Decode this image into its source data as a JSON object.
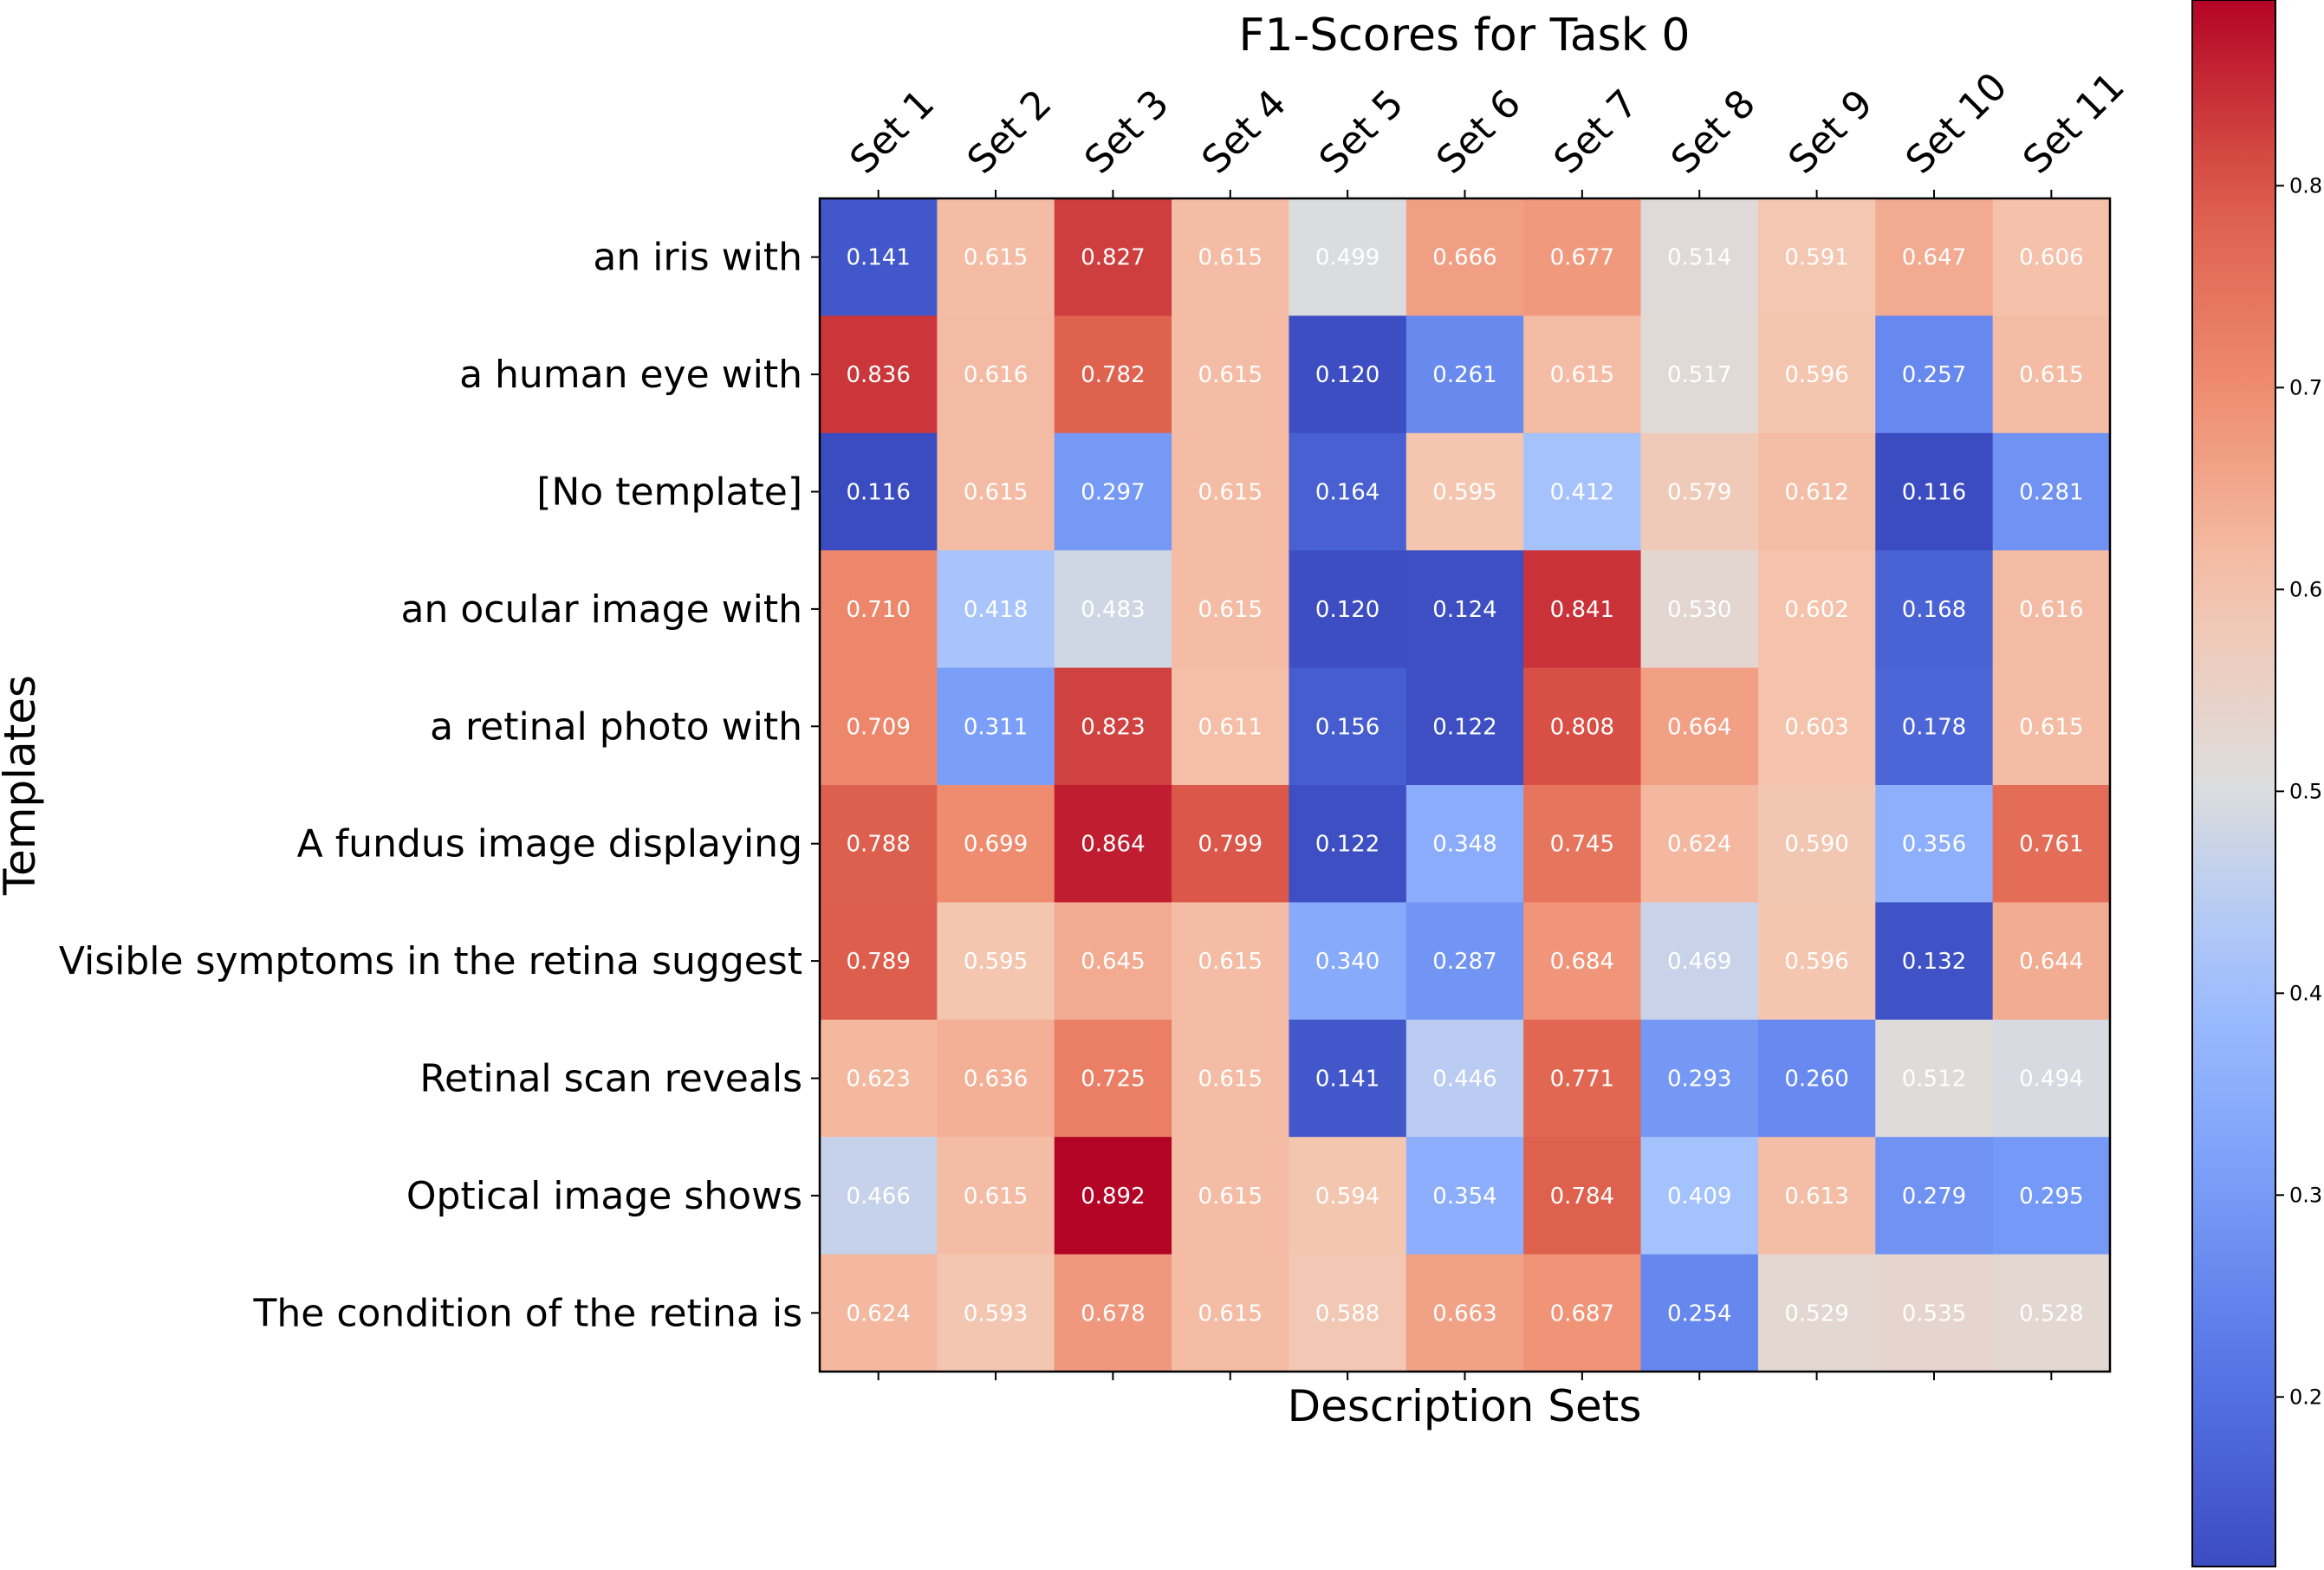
{
  "chart_data": {
    "type": "heatmap",
    "title": "F1-Scores for Task 0",
    "xlabel": "Description Sets",
    "ylabel": "Templates",
    "colormap": "coolwarm",
    "x_categories": [
      "Set 1",
      "Set 2",
      "Set 3",
      "Set 4",
      "Set 5",
      "Set 6",
      "Set 7",
      "Set 8",
      "Set 9",
      "Set 10",
      "Set 11"
    ],
    "y_categories": [
      "an iris with",
      "a human eye with",
      "[No template]",
      "an ocular image with",
      "a retinal photo with",
      "A fundus image displaying",
      "Visible symptoms in the retina suggest",
      "Retinal scan reveals",
      "Optical image shows",
      "The condition of the retina is"
    ],
    "values": [
      [
        0.141,
        0.615,
        0.827,
        0.615,
        0.499,
        0.666,
        0.677,
        0.514,
        0.591,
        0.647,
        0.606
      ],
      [
        0.836,
        0.616,
        0.782,
        0.615,
        0.12,
        0.261,
        0.615,
        0.517,
        0.596,
        0.257,
        0.615
      ],
      [
        0.116,
        0.615,
        0.297,
        0.615,
        0.164,
        0.595,
        0.412,
        0.579,
        0.612,
        0.116,
        0.281
      ],
      [
        0.71,
        0.418,
        0.483,
        0.615,
        0.12,
        0.124,
        0.841,
        0.53,
        0.602,
        0.168,
        0.616
      ],
      [
        0.709,
        0.311,
        0.823,
        0.611,
        0.156,
        0.122,
        0.808,
        0.664,
        0.603,
        0.178,
        0.615
      ],
      [
        0.788,
        0.699,
        0.864,
        0.799,
        0.122,
        0.348,
        0.745,
        0.624,
        0.59,
        0.356,
        0.761
      ],
      [
        0.789,
        0.595,
        0.645,
        0.615,
        0.34,
        0.287,
        0.684,
        0.469,
        0.596,
        0.132,
        0.644
      ],
      [
        0.623,
        0.636,
        0.725,
        0.615,
        0.141,
        0.446,
        0.771,
        0.293,
        0.26,
        0.512,
        0.494
      ],
      [
        0.466,
        0.615,
        0.892,
        0.615,
        0.594,
        0.354,
        0.784,
        0.409,
        0.613,
        0.279,
        0.295
      ],
      [
        0.624,
        0.593,
        0.678,
        0.615,
        0.588,
        0.663,
        0.687,
        0.254,
        0.529,
        0.535,
        0.528
      ]
    ],
    "vmin": 0.116,
    "vmax": 0.892,
    "colorbar_ticks": [
      {
        "value": 0.8,
        "label": "0.8"
      },
      {
        "value": 0.7,
        "label": "0.7"
      },
      {
        "value": 0.6,
        "label": "0.6"
      },
      {
        "value": 0.5,
        "label": "0.5"
      },
      {
        "value": 0.4,
        "label": "0.4"
      },
      {
        "value": 0.3,
        "label": "0.3"
      },
      {
        "value": 0.2,
        "label": "0.2"
      }
    ],
    "cell_text_color": "#ffffff"
  }
}
